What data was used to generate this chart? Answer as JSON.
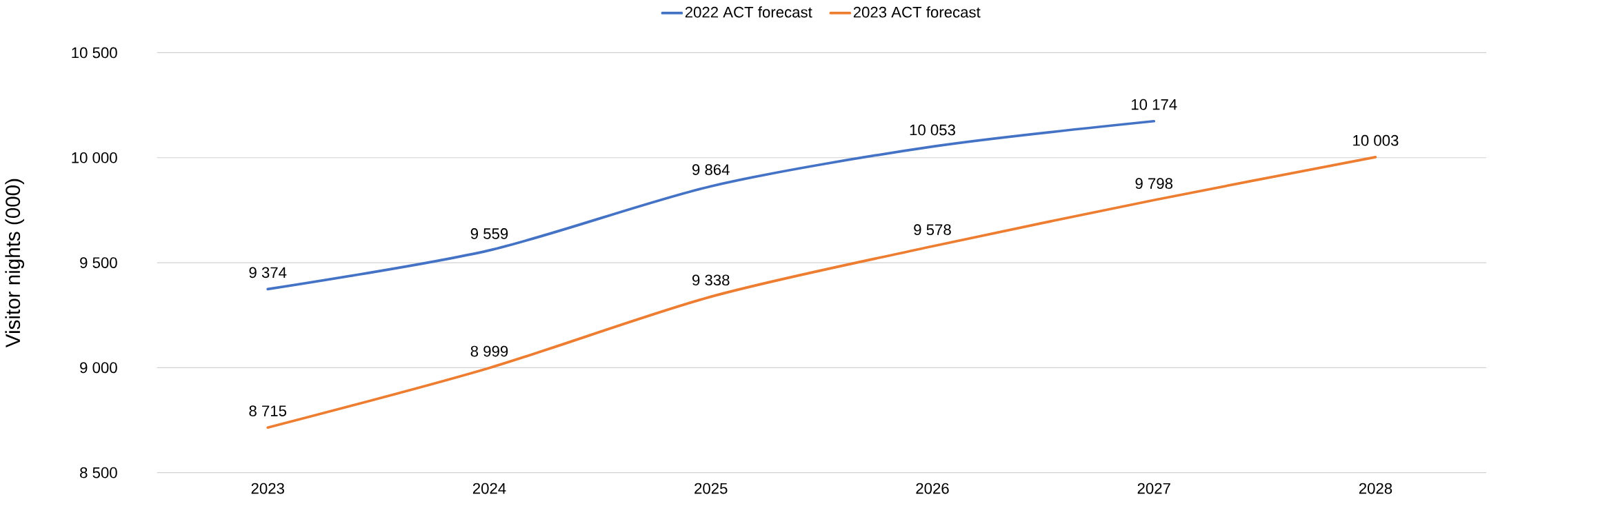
{
  "chart_data": {
    "type": "line",
    "ylabel": "Visitor nights (000)",
    "categories": [
      "2023",
      "2024",
      "2025",
      "2026",
      "2027",
      "2028"
    ],
    "series": [
      {
        "name": "2022 ACT forecast",
        "color": "#4472c4",
        "values": [
          9374,
          9559,
          9864,
          10053,
          10174,
          null
        ],
        "value_labels": [
          "9 374",
          "9 559",
          "9 864",
          "10 053",
          "10 174",
          null
        ]
      },
      {
        "name": "2023 ACT forecast",
        "color": "#ed7d31",
        "values": [
          8715,
          8999,
          9338,
          9578,
          9798,
          10003
        ],
        "value_labels": [
          "8 715",
          "8 999",
          "9 338",
          "9 578",
          "9 798",
          "10 003"
        ]
      }
    ],
    "ylim": [
      8500,
      10500
    ],
    "yticks": [
      {
        "value": 8500,
        "label": "8 500"
      },
      {
        "value": 9000,
        "label": "9 000"
      },
      {
        "value": 9500,
        "label": "9 500"
      },
      {
        "value": 10000,
        "label": "10 000"
      },
      {
        "value": 10500,
        "label": "10 500"
      }
    ],
    "grid": "y",
    "legend": "top"
  }
}
